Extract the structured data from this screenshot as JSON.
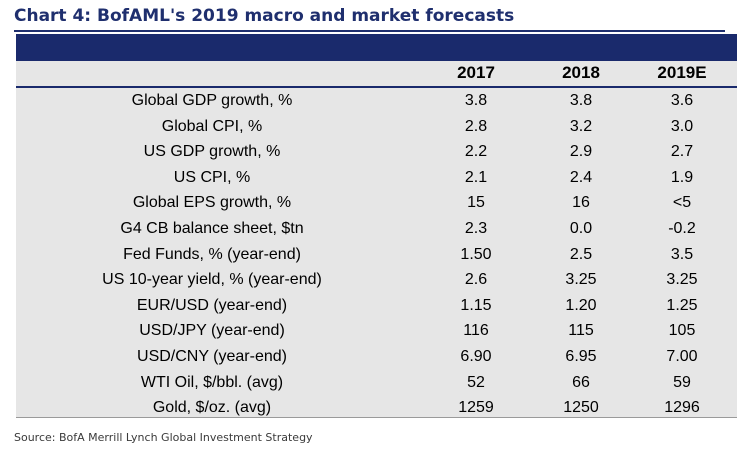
{
  "title": "Chart 4: BofAML's 2019 macro and market forecasts",
  "source": "Source:  BofA Merrill Lynch Global Investment Strategy",
  "colors": {
    "navy": "#1a2a6c",
    "table_bg": "#e6e6e6",
    "title": "#1f2f6e"
  },
  "chart_data": {
    "type": "table",
    "title": "Chart 4: BofAML's 2019 macro and market forecasts",
    "columns": [
      "2017",
      "2018",
      "2019E"
    ],
    "rows": [
      {
        "label": "Global GDP growth, %",
        "values": [
          "3.8",
          "3.8",
          "3.6"
        ]
      },
      {
        "label": "Global CPI, %",
        "values": [
          "2.8",
          "3.2",
          "3.0"
        ]
      },
      {
        "label": "US GDP growth, %",
        "values": [
          "2.2",
          "2.9",
          "2.7"
        ]
      },
      {
        "label": "US CPI, %",
        "values": [
          "2.1",
          "2.4",
          "1.9"
        ]
      },
      {
        "label": "Global EPS growth, %",
        "values": [
          "15",
          "16",
          "<5"
        ]
      },
      {
        "label": "G4 CB balance sheet, $tn",
        "values": [
          "2.3",
          "0.0",
          "-0.2"
        ]
      },
      {
        "label": "Fed Funds, % (year-end)",
        "values": [
          "1.50",
          "2.5",
          "3.5"
        ]
      },
      {
        "label": "US 10-year yield, % (year-end)",
        "values": [
          "2.6",
          "3.25",
          "3.25"
        ]
      },
      {
        "label": "EUR/USD (year-end)",
        "values": [
          "1.15",
          "1.20",
          "1.25"
        ]
      },
      {
        "label": "USD/JPY (year-end)",
        "values": [
          "116",
          "115",
          "105"
        ]
      },
      {
        "label": "USD/CNY (year-end)",
        "values": [
          "6.90",
          "6.95",
          "7.00"
        ]
      },
      {
        "label": "WTI Oil, $/bbl. (avg)",
        "values": [
          "52",
          "66",
          "59"
        ]
      },
      {
        "label": "Gold, $/oz. (avg)",
        "values": [
          "1259",
          "1250",
          "1296"
        ]
      }
    ]
  }
}
